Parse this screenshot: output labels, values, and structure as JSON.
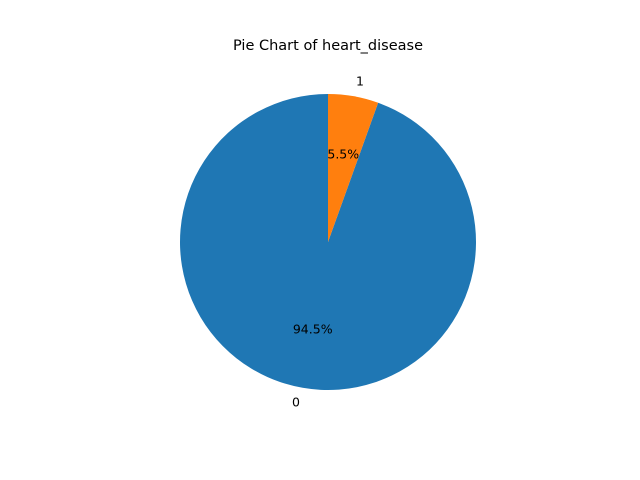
{
  "chart_data": {
    "type": "pie",
    "title": "Pie Chart of heart_disease",
    "categories": [
      "0",
      "1"
    ],
    "values": [
      94.5,
      5.5
    ],
    "percent_labels": [
      "94.5%",
      "5.5%"
    ],
    "colors": [
      "#1f77b4",
      "#ff7f0e"
    ],
    "start_angle_deg": 90,
    "direction": "counterclockwise",
    "legend": "none"
  }
}
